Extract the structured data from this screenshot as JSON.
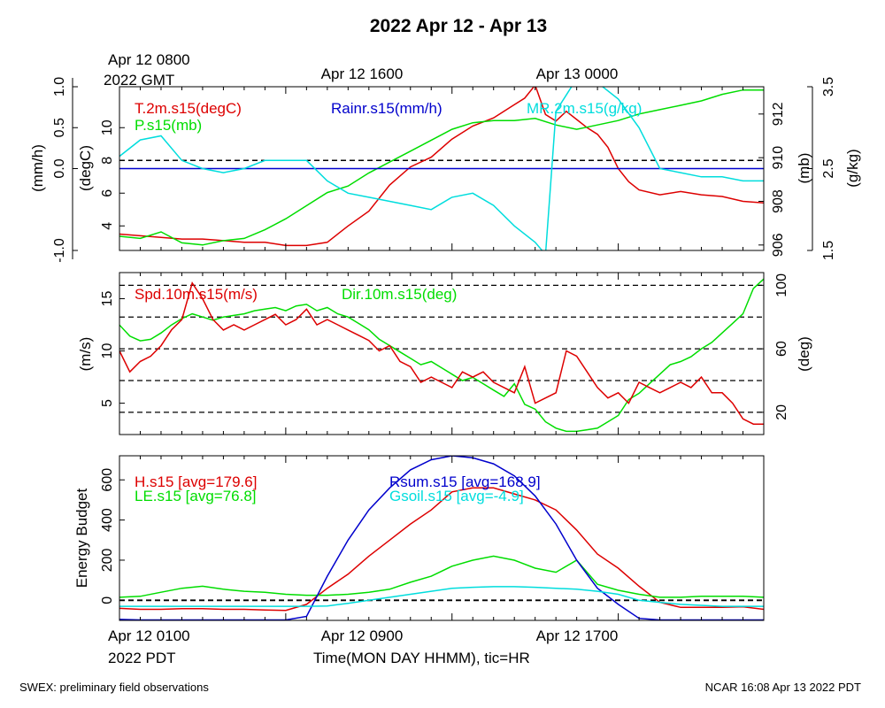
{
  "title": "2022 Apr 12 - Apr 13",
  "top_time_labels": [
    {
      "line1": "Apr 12 0800",
      "line2": "2022 GMT"
    },
    {
      "line1": "Apr 12 1600",
      "line2": ""
    },
    {
      "line1": "Apr 13 0000",
      "line2": ""
    }
  ],
  "bottom_time_labels": [
    {
      "line1": "Apr 12 0100",
      "line2": "2022 PDT"
    },
    {
      "line1": "Apr 12 0900",
      "line2": ""
    },
    {
      "line1": "Apr 12 1700",
      "line2": ""
    }
  ],
  "xlabel": "Time(MON DAY HHMM), tic=HR",
  "footer_left": "SWEX: preliminary field observations",
  "footer_right": "NCAR 16:08 Apr 13 2022 PDT",
  "colors": {
    "red": "#dd0000",
    "green": "#00dd00",
    "blue": "#0000cc",
    "cyan": "#00dddd",
    "black": "#000000"
  },
  "chart_data": [
    {
      "type": "line",
      "panel": "top",
      "x_range_hours": [
        0,
        31
      ],
      "axes": {
        "rain": {
          "label": "(mm/h)",
          "range": [
            -1.0,
            1.0
          ],
          "ticks": [
            "1.0",
            "0.5",
            "0.0",
            "-1.0"
          ]
        },
        "temp": {
          "label": "(degC)",
          "range": [
            2.5,
            12.5
          ],
          "ticks": [
            "10",
            "8",
            "6",
            "4"
          ]
        },
        "pres": {
          "label": "(mb)",
          "range": [
            905.75,
            913.25
          ],
          "ticks": [
            "912",
            "910",
            "908",
            "906"
          ]
        },
        "mr": {
          "label": "(g/kg)",
          "range": [
            1.5,
            3.5
          ],
          "ticks": [
            "3.5",
            "2.5",
            "1.5"
          ]
        }
      },
      "reference_line": {
        "axis": "temp",
        "value": 8
      },
      "series": [
        {
          "name": "T.2m.s15(degC)",
          "color": "red",
          "axis": "temp",
          "x": [
            0,
            1,
            2,
            3,
            4,
            5,
            6,
            7,
            8,
            9,
            10,
            11,
            12,
            13,
            14,
            15,
            16,
            17,
            18,
            19,
            19.5,
            20,
            20.5,
            21,
            21.5,
            22,
            22.5,
            23,
            23.5,
            24,
            24.5,
            25,
            26,
            27,
            28,
            29,
            30,
            31
          ],
          "y": [
            3.5,
            3.4,
            3.3,
            3.2,
            3.2,
            3.1,
            3.0,
            3.0,
            2.8,
            2.8,
            3.0,
            4.0,
            4.9,
            6.5,
            7.6,
            8.2,
            9.3,
            10.1,
            10.6,
            11.4,
            11.8,
            12.6,
            10.8,
            10.4,
            11.0,
            10.5,
            10.0,
            9.6,
            8.8,
            7.5,
            6.7,
            6.2,
            5.9,
            6.1,
            5.9,
            5.8,
            5.5,
            5.4
          ]
        },
        {
          "name": "P.s15(mb)",
          "color": "green",
          "axis": "pres",
          "x": [
            0,
            1,
            2,
            3,
            4,
            5,
            6,
            7,
            8,
            9,
            10,
            11,
            12,
            13,
            14,
            15,
            16,
            17,
            18,
            19,
            20,
            21,
            22,
            23,
            24,
            25,
            26,
            27,
            28,
            29,
            30,
            31
          ],
          "y": [
            906.4,
            906.3,
            906.6,
            906.1,
            906.0,
            906.2,
            906.3,
            906.7,
            907.2,
            907.8,
            908.4,
            908.7,
            909.3,
            909.8,
            910.3,
            910.8,
            911.3,
            911.6,
            911.7,
            911.7,
            911.8,
            911.5,
            911.3,
            911.5,
            911.7,
            912.0,
            912.2,
            912.4,
            912.6,
            912.9,
            913.1,
            913.1
          ]
        },
        {
          "name": "Rainr.s15(mm/h)",
          "color": "blue",
          "axis": "rain",
          "x": [
            0,
            31
          ],
          "y": [
            0,
            0
          ]
        },
        {
          "name": "MR.2m.s15(g/kg)",
          "color": "cyan",
          "axis": "mr",
          "x": [
            0,
            1,
            2,
            3,
            4,
            5,
            6,
            7,
            8,
            9,
            10,
            11,
            12,
            13,
            14,
            15,
            16,
            17,
            18,
            19,
            20,
            20.5,
            21,
            21.5,
            22,
            23,
            24,
            25,
            26,
            27,
            28,
            29,
            30,
            31
          ],
          "y": [
            2.65,
            2.85,
            2.9,
            2.6,
            2.5,
            2.45,
            2.5,
            2.6,
            2.6,
            2.6,
            2.35,
            2.2,
            2.15,
            2.1,
            2.05,
            2.0,
            2.15,
            2.2,
            2.05,
            1.8,
            1.6,
            1.45,
            3.2,
            3.4,
            3.6,
            3.55,
            3.35,
            3.0,
            2.5,
            2.45,
            2.4,
            2.4,
            2.35,
            2.35
          ]
        }
      ]
    },
    {
      "type": "line",
      "panel": "middle",
      "x_range_hours": [
        0,
        31
      ],
      "axes": {
        "spd": {
          "label": "(m/s)",
          "range": [
            2,
            17.5
          ],
          "ticks": [
            "15",
            "10",
            "5"
          ]
        },
        "dir": {
          "label": "(deg)",
          "range": [
            6,
            108
          ],
          "ticks": [
            "100",
            "60",
            "20"
          ]
        }
      },
      "dashed_lines_deg": [
        20,
        40,
        60,
        80,
        100
      ],
      "series": [
        {
          "name": "Spd.10m.s15(m/s)",
          "color": "red",
          "axis": "spd",
          "x": [
            0,
            0.5,
            1,
            1.5,
            2,
            2.5,
            3,
            3.5,
            4,
            4.5,
            5,
            5.5,
            6,
            6.5,
            7,
            7.5,
            8,
            8.5,
            9,
            9.5,
            10,
            10.5,
            11,
            11.5,
            12,
            12.5,
            13,
            13.5,
            14,
            14.5,
            15,
            15.5,
            16,
            16.5,
            17,
            17.5,
            18,
            18.5,
            19,
            19.5,
            20,
            20.5,
            21,
            21.5,
            22,
            22.5,
            23,
            23.5,
            24,
            24.5,
            25,
            25.5,
            26,
            26.5,
            27,
            27.5,
            28,
            28.5,
            29,
            29.5,
            30,
            30.5,
            31
          ],
          "y": [
            10,
            8,
            9,
            9.5,
            10.5,
            12,
            13,
            16.5,
            15,
            13,
            12,
            12.5,
            12,
            12.5,
            13,
            13.5,
            12.5,
            13,
            14,
            12.5,
            13,
            12.5,
            12,
            11.5,
            11,
            10,
            10.5,
            9,
            8.5,
            7,
            7.5,
            7,
            6.5,
            8,
            7.5,
            8,
            7,
            6.5,
            6,
            8.5,
            5,
            5.5,
            6,
            10,
            9.5,
            8,
            6.5,
            5.5,
            6,
            5,
            7,
            6.5,
            6,
            6.5,
            7,
            6.5,
            7.5,
            6,
            6,
            5,
            3.5,
            3,
            3
          ]
        },
        {
          "name": "Dir.10m.s15(deg)",
          "color": "green",
          "axis": "dir",
          "x": [
            0,
            0.5,
            1,
            1.5,
            2,
            2.5,
            3,
            3.5,
            4,
            4.5,
            5,
            5.5,
            6,
            6.5,
            7,
            7.5,
            8,
            8.5,
            9,
            9.5,
            10,
            10.5,
            11,
            11.5,
            12,
            12.5,
            13,
            13.5,
            14,
            14.5,
            15,
            15.5,
            16,
            16.5,
            17,
            17.5,
            18,
            18.5,
            19,
            19.5,
            20,
            20.5,
            21,
            21.5,
            22,
            22.5,
            23,
            23.5,
            24,
            24.5,
            25,
            25.5,
            26,
            26.5,
            27,
            27.5,
            28,
            28.5,
            29,
            29.5,
            30,
            30.5,
            31
          ],
          "y": [
            75,
            68,
            65,
            66,
            70,
            75,
            79,
            82,
            80,
            78,
            80,
            81,
            82,
            84,
            85,
            86,
            84,
            87,
            88,
            84,
            86,
            82,
            80,
            76,
            72,
            66,
            62,
            58,
            54,
            50,
            52,
            48,
            44,
            40,
            42,
            38,
            34,
            30,
            38,
            25,
            22,
            14,
            10,
            8,
            8,
            9,
            10,
            14,
            18,
            28,
            32,
            38,
            44,
            50,
            52,
            55,
            60,
            64,
            70,
            76,
            82,
            98,
            104
          ]
        }
      ]
    },
    {
      "type": "line",
      "panel": "bottom",
      "x_range_hours": [
        0,
        31
      ],
      "ylabel": "Energy Budget",
      "ylim": [
        -100,
        720
      ],
      "yticks": [
        "600",
        "400",
        "200",
        "0"
      ],
      "zero_line": 0,
      "series": [
        {
          "name": "H.s15 [avg=179.6]",
          "color": "red",
          "x": [
            0,
            1,
            2,
            3,
            4,
            5,
            6,
            7,
            8,
            9,
            10,
            11,
            12,
            13,
            14,
            15,
            16,
            17,
            18,
            19,
            20,
            21,
            22,
            23,
            24,
            25,
            26,
            27,
            28,
            29,
            30,
            31
          ],
          "y": [
            -40,
            -45,
            -45,
            -42,
            -42,
            -45,
            -45,
            -48,
            -50,
            -20,
            60,
            130,
            220,
            300,
            380,
            450,
            540,
            560,
            560,
            530,
            500,
            450,
            350,
            230,
            160,
            70,
            -10,
            -35,
            -35,
            -35,
            -32,
            -45
          ]
        },
        {
          "name": "LE.s15 [avg=76.8]",
          "color": "green",
          "x": [
            0,
            1,
            2,
            3,
            4,
            5,
            6,
            7,
            8,
            9,
            10,
            11,
            12,
            13,
            14,
            15,
            16,
            17,
            18,
            19,
            20,
            21,
            22,
            23,
            24,
            25,
            26,
            27,
            28,
            29,
            30,
            31
          ],
          "y": [
            15,
            20,
            40,
            60,
            70,
            55,
            45,
            40,
            30,
            25,
            25,
            30,
            40,
            55,
            90,
            120,
            170,
            200,
            220,
            200,
            160,
            140,
            200,
            80,
            50,
            30,
            15,
            15,
            20,
            20,
            20,
            15
          ]
        },
        {
          "name": "Rsum.s15 [avg=168.9]",
          "color": "blue",
          "x": [
            0,
            1,
            2,
            3,
            4,
            5,
            6,
            7,
            8,
            9,
            10,
            11,
            12,
            13,
            14,
            15,
            16,
            17,
            18,
            19,
            20,
            21,
            22,
            23,
            24,
            25,
            26,
            27,
            28,
            29,
            30,
            31
          ],
          "y": [
            -95,
            -98,
            -98,
            -98,
            -98,
            -98,
            -98,
            -98,
            -98,
            -80,
            120,
            300,
            450,
            560,
            650,
            700,
            720,
            710,
            680,
            620,
            520,
            380,
            200,
            60,
            -20,
            -90,
            -98,
            -98,
            -98,
            -98,
            -98,
            -98
          ]
        },
        {
          "name": "Gsoil.s15 [avg=-4.9]",
          "color": "cyan",
          "x": [
            0,
            1,
            2,
            3,
            4,
            5,
            6,
            7,
            8,
            9,
            10,
            11,
            12,
            13,
            14,
            15,
            16,
            17,
            18,
            19,
            20,
            21,
            22,
            23,
            24,
            25,
            26,
            27,
            28,
            29,
            30,
            31
          ],
          "y": [
            -30,
            -30,
            -30,
            -30,
            -30,
            -30,
            -30,
            -30,
            -30,
            -30,
            -28,
            -15,
            0,
            15,
            30,
            45,
            60,
            65,
            68,
            68,
            65,
            60,
            55,
            45,
            30,
            0,
            -10,
            -20,
            -25,
            -30,
            -30,
            -30
          ]
        }
      ]
    }
  ]
}
